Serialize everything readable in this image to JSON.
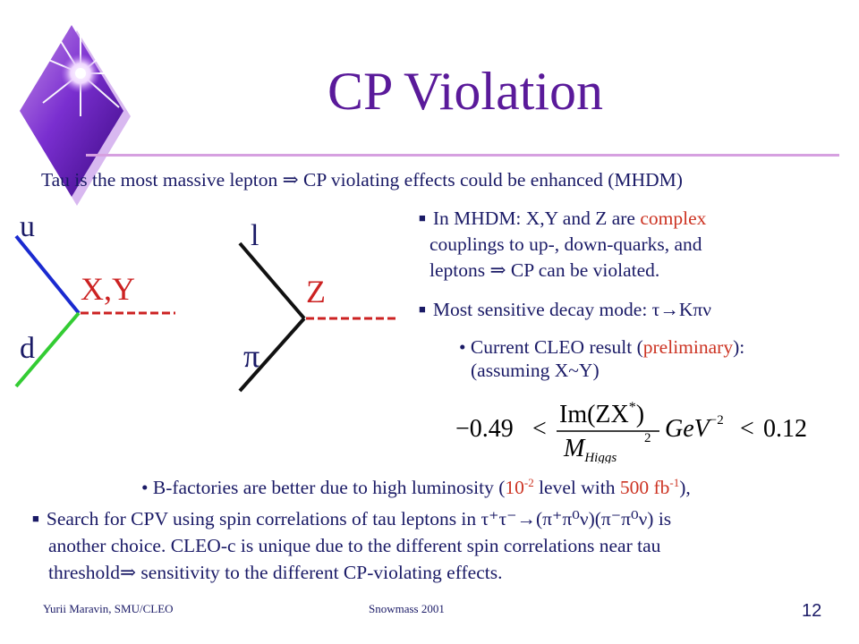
{
  "slide": {
    "title": "CP Violation",
    "intro": "Tau is the most massive lepton ⇒ CP violating effects could be enhanced  (MHDM)"
  },
  "diagram_left": {
    "top_label": "u",
    "bottom_label": "d",
    "boson_label": "X,Y"
  },
  "diagram_right": {
    "top_label": "l",
    "bottom_label": "π",
    "boson_label": "Z"
  },
  "bullets": {
    "mhdm": {
      "pre": "In MHDM: X,Y and Z are ",
      "highlight": "complex",
      "line2": "couplings to up-, down-quarks, and",
      "line3": "leptons ⇒ CP can be violated."
    },
    "decay": {
      "text": "Most sensitive decay mode: τ→Kπν"
    },
    "cleo": {
      "pre": "• Current CLEO result (",
      "highlight": "preliminary",
      "post": "):",
      "line2": "(assuming X~Y)"
    },
    "bfactories": {
      "pre": "• B-factories are better due to high  luminosity (",
      "hl_base": "10",
      "hl_exp": "-2",
      "mid": " level with ",
      "hl2_base": "500 fb",
      "hl2_exp": "-1",
      "post": "),"
    },
    "spin": {
      "pre": "Search for CPV using spin correlations of tau leptons in ",
      "process": "τ⁺τ⁻→(π⁺π⁰ν)(π⁻π⁰ν)",
      "post": " is",
      "line2": "another choice. CLEO-c is unique due to the different spin correlations near tau",
      "line3": "threshold⇒ sensitivity to the different CP-violating effects."
    }
  },
  "formula": {
    "left": "−0.49",
    "lt1": "<",
    "numerator": "Im(ZX",
    "star": "*",
    "num_close": ")",
    "denominator": "M",
    "den_sub": "Higgs",
    "den_exp": "2",
    "unit": "GeV",
    "unit_exp": "−2",
    "lt2": "<",
    "right": "0.12"
  },
  "footer": {
    "author": "Yurii  Maravin,  SMU/CLEO",
    "conference": "Snowmass  2001",
    "page": "12"
  },
  "colors": {
    "title": "#5a1a9a",
    "highlight": "#cc3322",
    "text": "#1a1a66",
    "quark_up": "#1a2ad0",
    "quark_down": "#33cc33",
    "propagator": "#cc2222"
  },
  "icons": {
    "logo": "purple-diamond-star-icon",
    "bullet": "square-bullet-icon"
  }
}
